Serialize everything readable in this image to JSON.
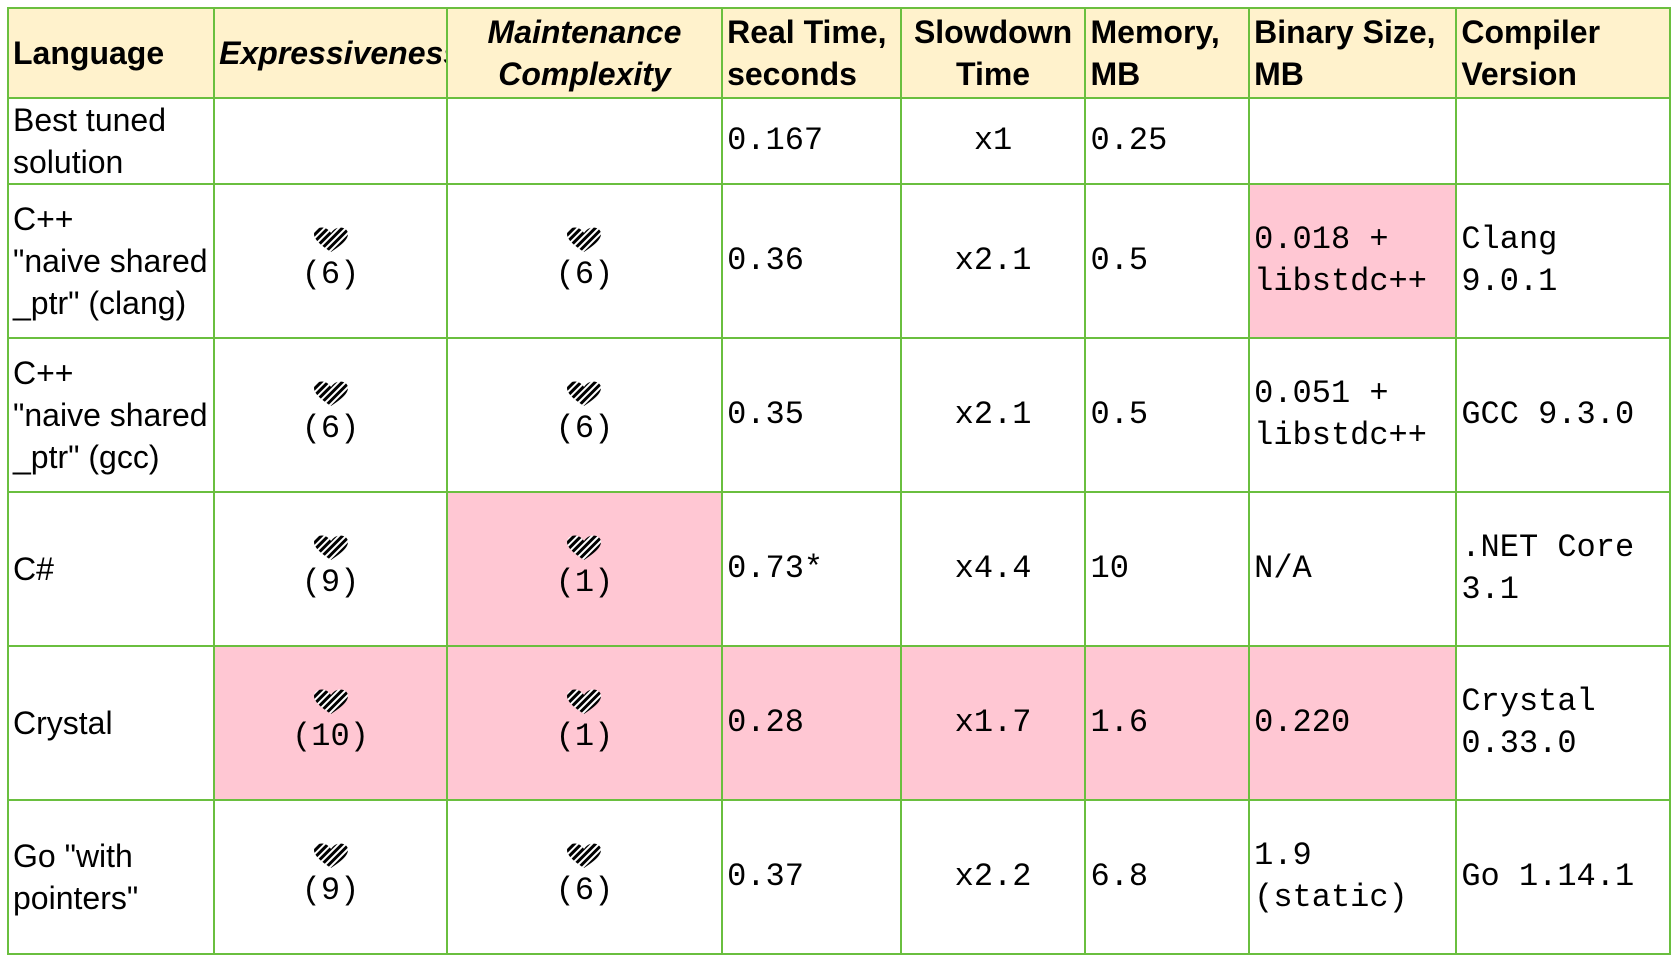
{
  "headers": [
    {
      "key": "language",
      "label": "Language"
    },
    {
      "key": "expressiveness",
      "label": "Expressiveness"
    },
    {
      "key": "maintenance",
      "label": "Maintenance\nComplexity"
    },
    {
      "key": "real_time",
      "label": "Real Time,\nseconds"
    },
    {
      "key": "slowdown",
      "label": "Slowdown\nTime"
    },
    {
      "key": "memory",
      "label": "Memory,\nMB"
    },
    {
      "key": "binary_size",
      "label": "Binary Size,\nMB"
    },
    {
      "key": "compiler",
      "label": "Compiler\nVersion"
    }
  ],
  "icon": "heart-icon",
  "highlight_color": "#ffc7d3",
  "header_color": "#fff2cc",
  "border_color": "#6abf3f",
  "rows": [
    {
      "language": "Best tuned\nsolution",
      "expressiveness": "",
      "maintenance": "",
      "real_time": "0.167",
      "slowdown": "x1",
      "memory": "0.25",
      "binary_size": "",
      "compiler": ""
    },
    {
      "language": "C++\n\"naive shared\n_ptr\" (clang)",
      "expressiveness": "(6)",
      "maintenance": "(6)",
      "real_time": "0.36",
      "slowdown": "x2.1",
      "memory": "0.5",
      "binary_size": "0.018 +\nlibstdc++",
      "compiler": "Clang\n9.0.1"
    },
    {
      "language": "C++\n\"naive shared\n_ptr\" (gcc)",
      "expressiveness": "(6)",
      "maintenance": "(6)",
      "real_time": "0.35",
      "slowdown": "x2.1",
      "memory": "0.5",
      "binary_size": "0.051 +\nlibstdc++",
      "compiler": "GCC 9.3.0"
    },
    {
      "language": "C#",
      "expressiveness": "(9)",
      "maintenance": "(1)",
      "real_time": "0.73*",
      "slowdown": "x4.4",
      "memory": "10",
      "binary_size": "N/A",
      "compiler": ".NET Core\n3.1"
    },
    {
      "language": "Crystal",
      "expressiveness": "(10)",
      "maintenance": "(1)",
      "real_time": "0.28",
      "slowdown": "x1.7",
      "memory": "1.6",
      "binary_size": "0.220",
      "compiler": "Crystal\n0.33.0"
    },
    {
      "language": "Go \"with\npointers\"",
      "expressiveness": "(9)",
      "maintenance": "(6)",
      "real_time": "0.37",
      "slowdown": "x2.2",
      "memory": "6.8",
      "binary_size": "1.9\n(static)",
      "compiler": "Go 1.14.1"
    }
  ]
}
